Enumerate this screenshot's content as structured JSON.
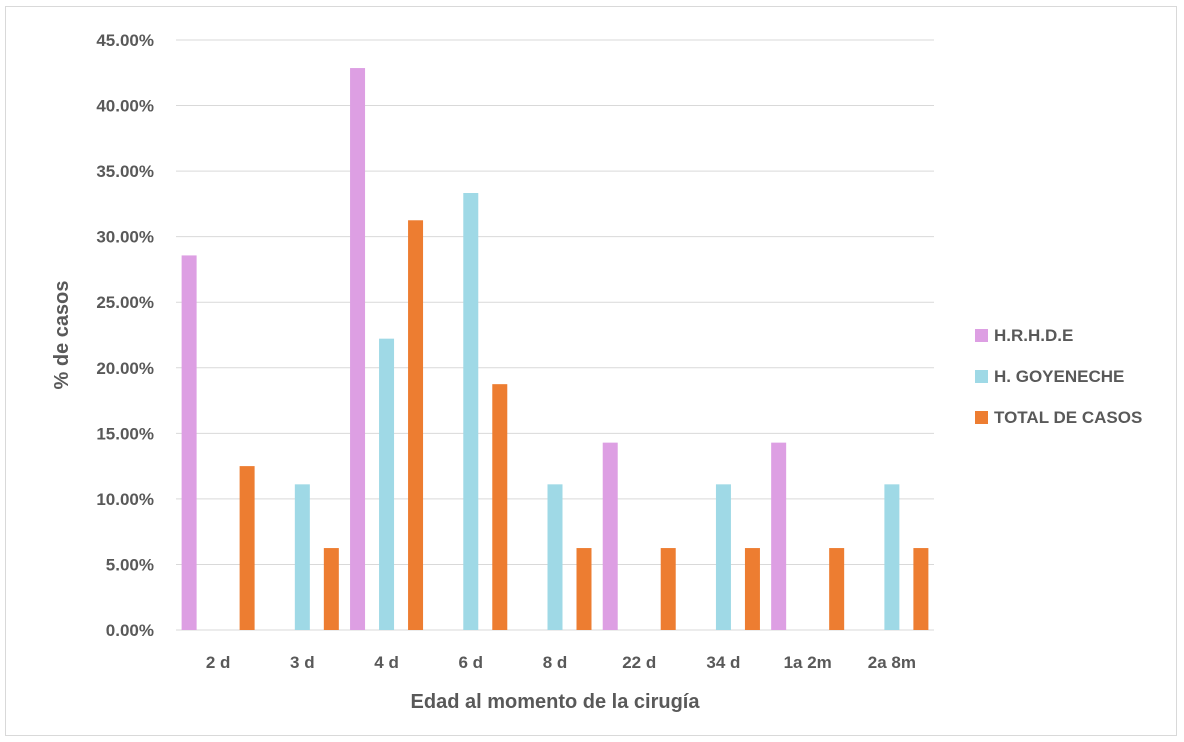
{
  "chart_data": {
    "type": "bar",
    "xlabel": "Edad al momento de la cirugía",
    "ylabel": "% de casos",
    "categories": [
      "2 d",
      "3 d",
      "4 d",
      "6 d",
      "8 d",
      "22 d",
      "34 d",
      "1a 2m",
      "2a 8m"
    ],
    "ylim": [
      0,
      45
    ],
    "yticks": [
      0,
      5,
      10,
      15,
      20,
      25,
      30,
      35,
      40,
      45
    ],
    "ytick_labels": [
      "0.00%",
      "5.00%",
      "10.00%",
      "15.00%",
      "20.00%",
      "25.00%",
      "30.00%",
      "35.00%",
      "40.00%",
      "45.00%"
    ],
    "grid": true,
    "legend_position": "right",
    "series": [
      {
        "name": "H.R.H.D.E",
        "color": "#dd9fe3",
        "values": [
          28.57,
          0,
          42.86,
          0,
          0,
          14.29,
          0,
          14.29,
          0
        ]
      },
      {
        "name": "H. GOYENECHE",
        "color": "#9fd9e6",
        "values": [
          0,
          11.11,
          22.22,
          33.33,
          11.11,
          0,
          11.11,
          0,
          11.11
        ]
      },
      {
        "name": "TOTAL DE CASOS",
        "color": "#ed7d31",
        "values": [
          12.5,
          6.25,
          31.25,
          18.75,
          6.25,
          6.25,
          6.25,
          6.25,
          6.25
        ]
      }
    ]
  }
}
